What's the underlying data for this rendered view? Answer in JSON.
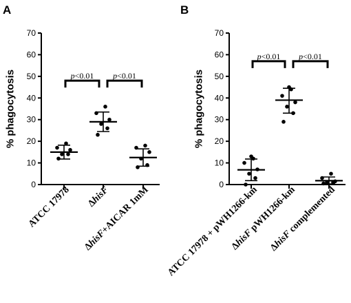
{
  "chart_data": [
    {
      "panel": "A",
      "type": "scatter",
      "ylabel": "% phagocytosis",
      "ylim": [
        0,
        70
      ],
      "yticks": [
        0,
        10,
        20,
        30,
        40,
        50,
        60,
        70
      ],
      "categories": [
        {
          "pre": "ATCC 17978",
          "ital": "",
          "post": ""
        },
        {
          "pre": "Δ",
          "ital": "hisF",
          "post": ""
        },
        {
          "pre": "Δ",
          "ital": "hisF",
          "post": "+AICAR 1mM"
        }
      ],
      "groups": [
        {
          "points": [
            12,
            14,
            14,
            16,
            17,
            19
          ],
          "mean": 15,
          "sd_low": 11.8,
          "sd_high": 18.2
        },
        {
          "points": [
            23,
            26,
            28,
            30,
            33,
            36
          ],
          "mean": 29,
          "sd_low": 24.5,
          "sd_high": 33.5
        },
        {
          "points": [
            8,
            9,
            12,
            15,
            17,
            18
          ],
          "mean": 12.5,
          "sd_low": 8.5,
          "sd_high": 16.5
        }
      ],
      "comparisons": [
        {
          "from": 0,
          "to": 1,
          "y": 48,
          "p": "p",
          "text": "<0.01"
        },
        {
          "from": 1,
          "to": 2,
          "y": 48,
          "p": "p",
          "text": "<0.01"
        }
      ]
    },
    {
      "panel": "B",
      "type": "scatter",
      "ylabel": "% phagocytosis",
      "ylim": [
        0,
        70
      ],
      "yticks": [
        0,
        10,
        20,
        30,
        40,
        50,
        60,
        70
      ],
      "categories": [
        {
          "pre": "ATCC 17978 + pWH1266-km",
          "ital": "",
          "post": ""
        },
        {
          "pre": "Δ",
          "ital": "hisF",
          "post": " pWH1266-km"
        },
        {
          "pre": "Δ",
          "ital": "hisF",
          "post": " complemented"
        }
      ],
      "groups": [
        {
          "points": [
            0,
            3,
            5,
            7,
            10,
            12,
            13
          ],
          "mean": 6.8,
          "sd_low": 1.8,
          "sd_high": 11.8
        },
        {
          "points": [
            29,
            33,
            36,
            38,
            41,
            44,
            45
          ],
          "mean": 39,
          "sd_low": 33,
          "sd_high": 44.5
        },
        {
          "points": [
            0.5,
            1,
            1,
            1.5,
            3,
            5
          ],
          "mean": 1.8,
          "sd_low": 0.3,
          "sd_high": 3.5
        }
      ],
      "comparisons": [
        {
          "from": 0,
          "to": 1,
          "y": 57,
          "p": "p",
          "text": "<0.01"
        },
        {
          "from": 1,
          "to": 2,
          "y": 57,
          "p": "p",
          "text": "<0.01"
        }
      ]
    }
  ]
}
